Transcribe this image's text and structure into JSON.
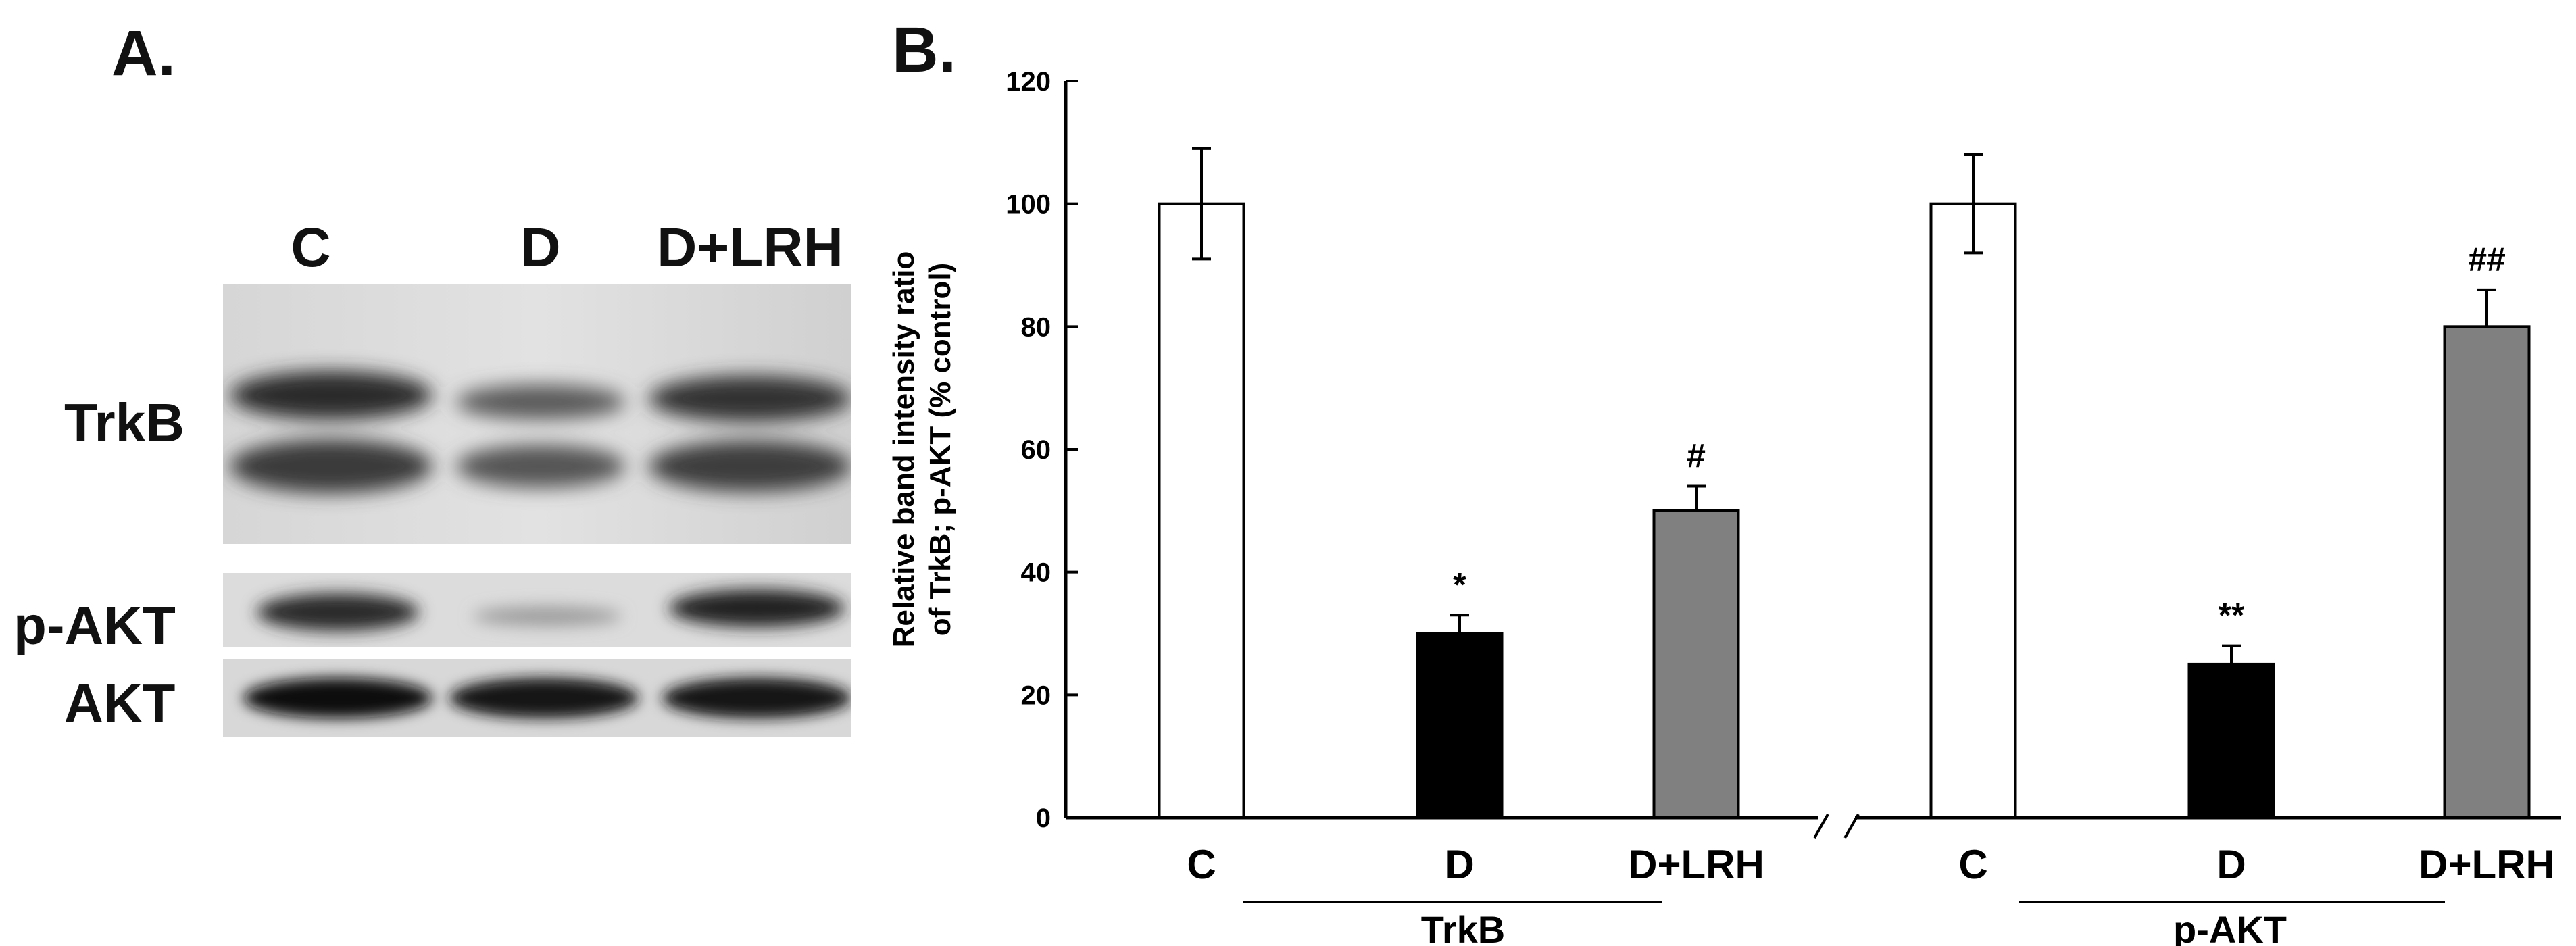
{
  "panel_a": {
    "label": "A.",
    "lanes": [
      "C",
      "D",
      "D+LRH"
    ],
    "rows": [
      "TrkB",
      "p-AKT",
      "AKT"
    ]
  },
  "panel_b": {
    "label": "B."
  },
  "chart_data": {
    "type": "bar",
    "ylabel": "Relative band intensity ratio of TrkB; p-AKT (% control)",
    "ylabel_lines": [
      "Relative band intensity ratio",
      "of TrkB; p-AKT (% control)"
    ],
    "ylim": [
      0,
      120
    ],
    "yticks": [
      0,
      20,
      40,
      60,
      80,
      100,
      120
    ],
    "grid": false,
    "groups": [
      {
        "name": "TrkB",
        "categories": [
          "C",
          "D",
          "D+LRH"
        ],
        "values": [
          100,
          30,
          50
        ],
        "errors": [
          9,
          3,
          4
        ],
        "annotations": [
          "",
          "*",
          "#"
        ]
      },
      {
        "name": "p-AKT",
        "categories": [
          "C",
          "D",
          "D+LRH"
        ],
        "values": [
          100,
          25,
          80
        ],
        "errors": [
          8,
          3,
          6
        ],
        "annotations": [
          "",
          "**",
          "##"
        ]
      }
    ],
    "bar_colors": [
      "#ffffff",
      "#000000",
      "#808080"
    ],
    "axis_break": "/ /"
  }
}
